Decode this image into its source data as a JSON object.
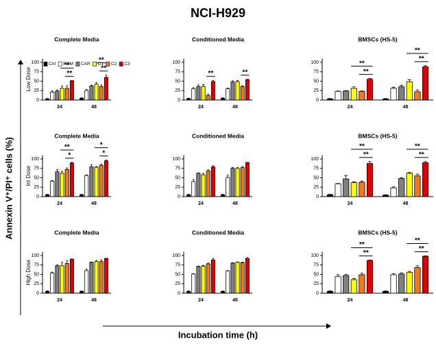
{
  "figure": {
    "title": "NCI-H929",
    "y_label": "Annexin V⁺/PI⁺ cells (%)",
    "x_label": "Incubation time (h)"
  },
  "chart_data": [
    {
      "type": "bar",
      "title": "Complete Media",
      "ylabel": "Low Dose",
      "legend": true,
      "categories": [
        "24",
        "48"
      ],
      "ylim": [
        0,
        110
      ],
      "yticks": [
        0,
        25,
        50,
        75,
        100
      ],
      "series": [
        {
          "name": "Ctrl",
          "color": "#000000",
          "values": [
            3,
            5
          ],
          "errors": [
            1,
            1
          ]
        },
        {
          "name": "POM",
          "color": "#ffffff",
          "values": [
            21,
            25
          ],
          "errors": [
            3,
            3
          ]
        },
        {
          "name": "CAR",
          "color": "#808080",
          "values": [
            24,
            37
          ],
          "errors": [
            2,
            2
          ]
        },
        {
          "name": "C1",
          "color": "#ffff00",
          "values": [
            31,
            42
          ],
          "errors": [
            6,
            4
          ]
        },
        {
          "name": "C2",
          "color": "#f07820",
          "values": [
            31,
            36
          ],
          "errors": [
            7,
            4
          ]
        },
        {
          "name": "C3",
          "color": "#e00000",
          "values": [
            51,
            60
          ],
          "errors": [
            1,
            6
          ]
        }
      ],
      "annotations": [
        {
          "text": "**",
          "category": 0,
          "from": 4,
          "to": 5
        },
        {
          "text": "**",
          "category": 0,
          "from": 3,
          "to": 5
        },
        {
          "text": "**",
          "category": 1,
          "from": 4,
          "to": 5
        },
        {
          "text": "**",
          "category": 1,
          "from": 3,
          "to": 5
        }
      ]
    },
    {
      "type": "bar",
      "title": "Conditioned Media",
      "categories": [
        "24",
        "48"
      ],
      "ylim": [
        0,
        110
      ],
      "yticks": [
        0,
        25,
        50,
        75,
        100
      ],
      "series": [
        {
          "color": "#000000",
          "values": [
            4,
            5
          ],
          "errors": [
            1,
            1
          ]
        },
        {
          "color": "#ffffff",
          "values": [
            30,
            30
          ],
          "errors": [
            3,
            2
          ]
        },
        {
          "color": "#808080",
          "values": [
            36,
            48
          ],
          "errors": [
            4,
            3
          ]
        },
        {
          "color": "#ffff00",
          "values": [
            36,
            49
          ],
          "errors": [
            5,
            3
          ]
        },
        {
          "color": "#f07820",
          "values": [
            12,
            36
          ],
          "errors": [
            4,
            2
          ]
        },
        {
          "color": "#e00000",
          "values": [
            49,
            54
          ],
          "errors": [
            3,
            1
          ]
        }
      ],
      "annotations": [
        {
          "text": "**",
          "category": 0,
          "from": 4,
          "to": 5
        },
        {
          "text": "**",
          "category": 1,
          "from": 4,
          "to": 5
        }
      ]
    },
    {
      "type": "bar",
      "title": "BMSCs (HS-5)",
      "categories": [
        "24",
        "48"
      ],
      "ylim": [
        0,
        110
      ],
      "yticks": [
        0,
        25,
        50,
        75,
        100
      ],
      "series": [
        {
          "color": "#000000",
          "values": [
            3,
            3
          ],
          "errors": [
            1,
            1
          ]
        },
        {
          "color": "#ffffff",
          "values": [
            23,
            31
          ],
          "errors": [
            1,
            3
          ]
        },
        {
          "color": "#808080",
          "values": [
            24,
            35
          ],
          "errors": [
            1,
            4
          ]
        },
        {
          "color": "#ffff00",
          "values": [
            31,
            48
          ],
          "errors": [
            4,
            6
          ]
        },
        {
          "color": "#f07820",
          "values": [
            23,
            22
          ],
          "errors": [
            1,
            5
          ]
        },
        {
          "color": "#e00000",
          "values": [
            55,
            88
          ],
          "errors": [
            2,
            3
          ]
        }
      ],
      "annotations": [
        {
          "text": "**",
          "category": 0,
          "from": 4,
          "to": 5
        },
        {
          "text": "**",
          "category": 0,
          "from": 3,
          "to": 5
        },
        {
          "text": "**",
          "category": 1,
          "from": 4,
          "to": 5
        },
        {
          "text": "**",
          "category": 1,
          "from": 3,
          "to": 5
        }
      ]
    },
    {
      "type": "bar",
      "title": "Complete Media",
      "ylabel": "Int Dose",
      "categories": [
        "24",
        "48"
      ],
      "ylim": [
        0,
        110
      ],
      "yticks": [
        0,
        25,
        50,
        75,
        100
      ],
      "series": [
        {
          "color": "#000000",
          "values": [
            5,
            5
          ],
          "errors": [
            1,
            1
          ]
        },
        {
          "color": "#ffffff",
          "values": [
            41,
            56
          ],
          "errors": [
            2,
            2
          ]
        },
        {
          "color": "#808080",
          "values": [
            66,
            79
          ],
          "errors": [
            6,
            6
          ]
        },
        {
          "color": "#ffff00",
          "values": [
            62,
            78
          ],
          "errors": [
            5,
            2
          ]
        },
        {
          "color": "#f07820",
          "values": [
            72,
            83
          ],
          "errors": [
            4,
            3
          ]
        },
        {
          "color": "#e00000",
          "values": [
            89,
            95
          ],
          "errors": [
            2,
            2
          ]
        }
      ],
      "annotations": [
        {
          "text": "*",
          "category": 0,
          "from": 4,
          "to": 5
        },
        {
          "text": "**",
          "category": 0,
          "from": 3,
          "to": 5
        },
        {
          "text": "*",
          "category": 1,
          "from": 4,
          "to": 5
        },
        {
          "text": "*",
          "category": 1,
          "from": 3,
          "to": 5
        }
      ]
    },
    {
      "type": "bar",
      "title": "Conditioned Media",
      "categories": [
        "24",
        "48"
      ],
      "ylim": [
        0,
        110
      ],
      "yticks": [
        0,
        25,
        50,
        75,
        100
      ],
      "series": [
        {
          "color": "#000000",
          "values": [
            5,
            5
          ],
          "errors": [
            1,
            1
          ]
        },
        {
          "color": "#ffffff",
          "values": [
            40,
            51
          ],
          "errors": [
            5,
            6
          ]
        },
        {
          "color": "#808080",
          "values": [
            62,
            75
          ],
          "errors": [
            1,
            2
          ]
        },
        {
          "color": "#ffff00",
          "values": [
            58,
            75
          ],
          "errors": [
            4,
            3
          ]
        },
        {
          "color": "#f07820",
          "values": [
            68,
            77
          ],
          "errors": [
            3,
            3
          ]
        },
        {
          "color": "#e00000",
          "values": [
            79,
            90
          ],
          "errors": [
            3,
            1
          ]
        }
      ],
      "annotations": []
    },
    {
      "type": "bar",
      "title": "BMSCs (HS-5)",
      "categories": [
        "24",
        "48"
      ],
      "ylim": [
        0,
        110
      ],
      "yticks": [
        0,
        25,
        50,
        75,
        100
      ],
      "series": [
        {
          "color": "#000000",
          "values": [
            5,
            4
          ],
          "errors": [
            1,
            1
          ]
        },
        {
          "color": "#ffffff",
          "values": [
            34,
            23
          ],
          "errors": [
            1,
            3
          ]
        },
        {
          "color": "#808080",
          "values": [
            47,
            48
          ],
          "errors": [
            9,
            2
          ]
        },
        {
          "color": "#ffff00",
          "values": [
            37,
            62
          ],
          "errors": [
            2,
            2
          ]
        },
        {
          "color": "#f07820",
          "values": [
            38,
            55
          ],
          "errors": [
            3,
            5
          ]
        },
        {
          "color": "#e00000",
          "values": [
            88,
            90
          ],
          "errors": [
            5,
            3
          ]
        }
      ],
      "annotations": [
        {
          "text": "**",
          "category": 0,
          "from": 4,
          "to": 5
        },
        {
          "text": "**",
          "category": 0,
          "from": 3,
          "to": 5
        },
        {
          "text": "**",
          "category": 1,
          "from": 4,
          "to": 5
        },
        {
          "text": "**",
          "category": 1,
          "from": 3,
          "to": 5
        }
      ]
    },
    {
      "type": "bar",
      "title": "Complete Media",
      "ylabel": "High Dose",
      "categories": [
        "24",
        "48"
      ],
      "ylim": [
        0,
        110
      ],
      "yticks": [
        0,
        25,
        50,
        75,
        100
      ],
      "series": [
        {
          "color": "#000000",
          "values": [
            5,
            5
          ],
          "errors": [
            1,
            1
          ]
        },
        {
          "color": "#ffffff",
          "values": [
            53,
            60
          ],
          "errors": [
            3,
            4
          ]
        },
        {
          "color": "#808080",
          "values": [
            73,
            82
          ],
          "errors": [
            2,
            1
          ]
        },
        {
          "color": "#ffff00",
          "values": [
            73,
            84
          ],
          "errors": [
            9,
            3
          ]
        },
        {
          "color": "#f07820",
          "values": [
            79,
            84
          ],
          "errors": [
            7,
            4
          ]
        },
        {
          "color": "#e00000",
          "values": [
            90,
            92
          ],
          "errors": [
            1,
            1
          ]
        }
      ],
      "annotations": []
    },
    {
      "type": "bar",
      "title": "Conditioned Media",
      "categories": [
        "24",
        "48"
      ],
      "ylim": [
        0,
        110
      ],
      "yticks": [
        0,
        25,
        50,
        75,
        100
      ],
      "series": [
        {
          "color": "#000000",
          "values": [
            5,
            5
          ],
          "errors": [
            1,
            1
          ]
        },
        {
          "color": "#ffffff",
          "values": [
            51,
            59
          ],
          "errors": [
            1,
            1
          ]
        },
        {
          "color": "#808080",
          "values": [
            71,
            80
          ],
          "errors": [
            1,
            1
          ]
        },
        {
          "color": "#ffff00",
          "values": [
            72,
            82
          ],
          "errors": [
            2,
            1
          ]
        },
        {
          "color": "#f07820",
          "values": [
            78,
            81
          ],
          "errors": [
            2,
            2
          ]
        },
        {
          "color": "#e00000",
          "values": [
            88,
            92
          ],
          "errors": [
            4,
            3
          ]
        }
      ],
      "annotations": []
    },
    {
      "type": "bar",
      "title": "BMSCs (HS-5)",
      "categories": [
        "24",
        "48"
      ],
      "ylim": [
        0,
        110
      ],
      "yticks": [
        0,
        25,
        50,
        75,
        100
      ],
      "series": [
        {
          "color": "#000000",
          "values": [
            5,
            5
          ],
          "errors": [
            1,
            1
          ]
        },
        {
          "color": "#ffffff",
          "values": [
            44,
            49
          ],
          "errors": [
            5,
            3
          ]
        },
        {
          "color": "#808080",
          "values": [
            47,
            51
          ],
          "errors": [
            3,
            3
          ]
        },
        {
          "color": "#ffff00",
          "values": [
            36,
            55
          ],
          "errors": [
            3,
            3
          ]
        },
        {
          "color": "#f07820",
          "values": [
            49,
            68
          ],
          "errors": [
            4,
            5
          ]
        },
        {
          "color": "#e00000",
          "values": [
            87,
            98
          ],
          "errors": [
            1,
            1
          ]
        }
      ],
      "annotations": [
        {
          "text": "**",
          "category": 0,
          "from": 4,
          "to": 5
        },
        {
          "text": "**",
          "category": 0,
          "from": 3,
          "to": 5
        },
        {
          "text": "**",
          "category": 1,
          "from": 4,
          "to": 5
        },
        {
          "text": "**",
          "category": 1,
          "from": 3,
          "to": 5
        }
      ]
    }
  ]
}
